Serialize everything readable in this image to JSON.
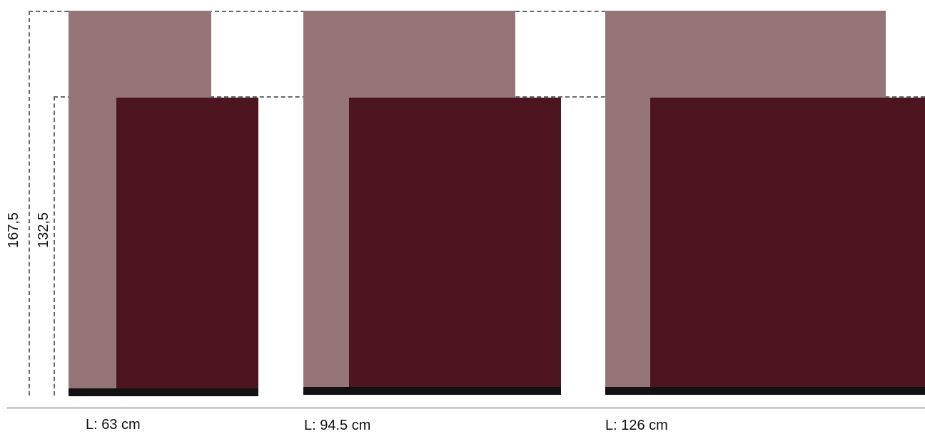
{
  "dimensions": {
    "outer_height": "167,5",
    "inner_height": "132,5"
  },
  "variants": [
    {
      "label": "L: 63 cm"
    },
    {
      "label": "L: 94.5 cm"
    },
    {
      "label": "L: 126 cm"
    }
  ],
  "colors": {
    "panel_light": "#957578",
    "panel_dark": "#4c1520",
    "base": "#121212",
    "guide": "#6b6b6b"
  }
}
